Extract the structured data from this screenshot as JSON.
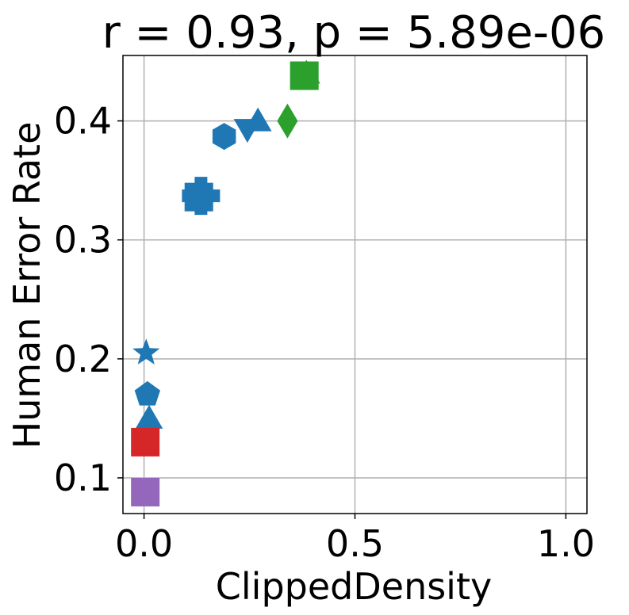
{
  "chart_data": {
    "type": "scatter",
    "title": "r = 0.93, p = 5.89e-06",
    "xlabel": "ClippedDensity",
    "ylabel": "Human Error Rate",
    "xlim": [
      -0.05,
      1.05
    ],
    "ylim": [
      0.07,
      0.455
    ],
    "xticks": [
      0.0,
      0.5,
      1.0
    ],
    "xtick_labels": [
      "0.0",
      "0.5",
      "1.0"
    ],
    "yticks": [
      0.1,
      0.2,
      0.3,
      0.4
    ],
    "ytick_labels": [
      "0.1",
      "0.2",
      "0.3",
      "0.4"
    ],
    "grid": true,
    "points": [
      {
        "x": 0.005,
        "y": 0.205,
        "marker": "star",
        "color": "#1f77b4"
      },
      {
        "x": 0.008,
        "y": 0.17,
        "marker": "pentagon",
        "color": "#1f77b4"
      },
      {
        "x": 0.012,
        "y": 0.148,
        "marker": "triangle-up",
        "color": "#1f77b4"
      },
      {
        "x": 0.003,
        "y": 0.13,
        "marker": "square",
        "color": "#d62728"
      },
      {
        "x": 0.003,
        "y": 0.088,
        "marker": "square",
        "color": "#9467bd"
      },
      {
        "x": 0.135,
        "y": 0.337,
        "marker": "plus-filled",
        "color": "#1f77b4"
      },
      {
        "x": 0.13,
        "y": 0.336,
        "marker": "square",
        "color": "#1f77b4"
      },
      {
        "x": 0.19,
        "y": 0.387,
        "marker": "hexagon",
        "color": "#1f77b4"
      },
      {
        "x": 0.245,
        "y": 0.395,
        "marker": "triangle-down",
        "color": "#1f77b4"
      },
      {
        "x": 0.27,
        "y": 0.398,
        "marker": "triangle-up",
        "color": "#1f77b4"
      },
      {
        "x": 0.34,
        "y": 0.4,
        "marker": "diamond",
        "color": "#2ca02c"
      },
      {
        "x": 0.385,
        "y": 0.438,
        "marker": "triangle-up",
        "color": "#2ca02c"
      },
      {
        "x": 0.38,
        "y": 0.438,
        "marker": "square",
        "color": "#2ca02c"
      }
    ]
  }
}
